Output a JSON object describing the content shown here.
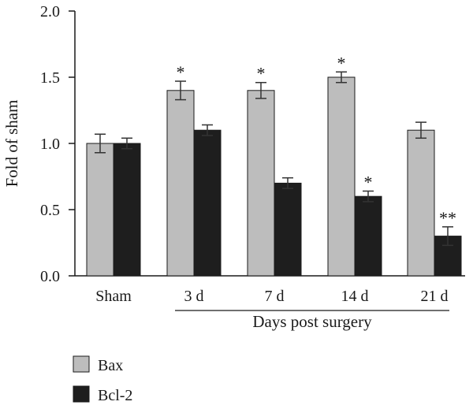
{
  "chart_data": {
    "type": "bar",
    "title": "",
    "ylabel": "Fold of sham",
    "xgroup_label": "Days post surgery",
    "categories": [
      "Sham",
      "3 d",
      "7 d",
      "14 d",
      "21 d"
    ],
    "ylim": [
      0,
      2.0
    ],
    "yticks": [
      "0.0",
      "0.5",
      "1.0",
      "1.5",
      "2.0"
    ],
    "grid": false,
    "legend_position": "bottom-left",
    "series": [
      {
        "name": "Bax",
        "color": "#bdbdbd",
        "values": [
          1.0,
          1.4,
          1.4,
          1.5,
          1.1
        ],
        "errors": [
          0.07,
          0.07,
          0.06,
          0.04,
          0.06
        ],
        "significance": [
          "",
          "*",
          "*",
          "*",
          ""
        ]
      },
      {
        "name": "Bcl-2",
        "color": "#1e1e1e",
        "values": [
          1.0,
          1.1,
          0.7,
          0.6,
          0.3
        ],
        "errors": [
          0.04,
          0.04,
          0.04,
          0.04,
          0.07
        ],
        "significance": [
          "",
          "",
          "",
          "*",
          "**"
        ]
      }
    ]
  }
}
